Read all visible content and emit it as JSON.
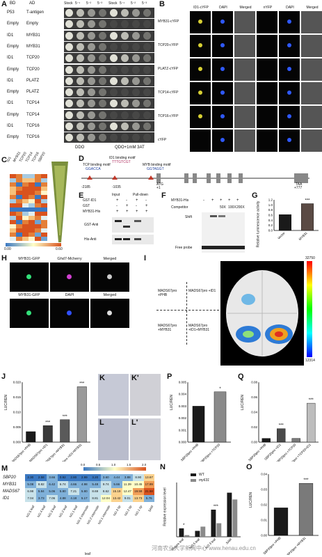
{
  "panels": {
    "A": {
      "letter": "A",
      "head_bd": "BD",
      "head_ad": "AD",
      "head_stock_dil": [
        "Stock",
        "5⁻¹",
        "5⁻²",
        "5⁻³"
      ],
      "head_stock_dil2": [
        "Stock",
        "5⁻¹",
        "5⁻²",
        "5⁻³"
      ],
      "rows": [
        [
          "P53",
          "T-antigen"
        ],
        [
          "Empty",
          "Empty"
        ],
        [
          "ID1",
          "MYB31"
        ],
        [
          "Empty",
          "MYB31"
        ],
        [
          "ID1",
          "TCP20"
        ],
        [
          "Empty",
          "TCP20"
        ],
        [
          "ID1",
          "PLATZ"
        ],
        [
          "Empty",
          "PLATZ"
        ],
        [
          "ID1",
          "TCP14"
        ],
        [
          "Empty",
          "TCP14"
        ],
        [
          "ID1",
          "TCP16"
        ],
        [
          "Empty",
          "TCP16"
        ]
      ],
      "media_left": "DDO",
      "media_right": "QDO+1mM 3AT"
    },
    "B": {
      "letter": "B",
      "cols": [
        "ID1-cYFP",
        "DAPI",
        "Merged",
        "nYFP",
        "DAPI",
        "Merged"
      ],
      "rows": [
        "MYB31-cYFP",
        "TCP20-cYFP",
        "PLATZ-cYFP",
        "TCP14-cYFP",
        "TCP16-cYFP",
        "cYFP"
      ]
    },
    "C": {
      "letter": "C",
      "cols": [
        "ID1",
        "MYB31",
        "TCP20",
        "TCP14",
        "TCP16",
        "SBP20"
      ],
      "scale_min": "0.00",
      "scale_max": "0.60"
    },
    "D": {
      "letter": "D",
      "tcp_motif": "TCP binding motif",
      "tcp_seq": "GGACCA",
      "id1_motif": "ID1 binding motif",
      "id1_seq": "TTTGTCGT",
      "myb_motif": "MYB binding motif",
      "myb_seq": "GGTAGGT",
      "atg": "ATG",
      "plus1": "+1",
      "taa": "TAA",
      "pos_taa": "+777",
      "pos_left": "-2185",
      "pos_mid": "-1035"
    },
    "E": {
      "letter": "E",
      "input": "Input",
      "pulldown": "Pull-down",
      "rows": [
        "GST-ID1",
        "GST",
        "MYB31-His"
      ],
      "blots": [
        "GST-Anti",
        "His-Anti"
      ],
      "signs": [
        [
          "+",
          "-",
          "+",
          "-"
        ],
        [
          "-",
          "+",
          "-",
          "+"
        ],
        [
          "+",
          "+",
          "+",
          "+"
        ]
      ]
    },
    "F": {
      "letter": "F",
      "myb": "MYB31-His",
      "competitor": "Competitor",
      "levels": [
        "50X",
        "100X",
        "200X"
      ],
      "shift": "Shift",
      "free_probe": "Free probe",
      "signs": [
        "-",
        "+",
        "+",
        "+",
        "+"
      ]
    },
    "G": {
      "letter": "G",
      "ylabel": "Relative luminescence activity",
      "categories": [
        "Vector",
        "MYB31"
      ],
      "values": [
        0.62,
        1.05
      ],
      "sig": "***",
      "yticks": [
        "0.0",
        "0.2",
        "0.4",
        "0.6",
        "0.8",
        "1.0",
        "1.2"
      ]
    },
    "H": {
      "letter": "H",
      "top": [
        "MYB31-GFP",
        "Ghd7-Mcherry",
        "Merged"
      ],
      "bottom": [
        "MYB31-GFP",
        "DAPI",
        "Merged"
      ]
    },
    "I": {
      "letter": "I",
      "quadrants": [
        "MADS67pro +PHB",
        "MADS67pro +ID1",
        "MADS67pro +MYB31",
        "MADS67pro +ID1+MYB31"
      ],
      "scale_max": "32750",
      "scale_min": "12314"
    },
    "J": {
      "letter": "J",
      "ylabel": "LUC/REN",
      "categories": [
        "MADS67pro +PHB",
        "MADS67pro +ID1",
        "MADS67pro +MYB31",
        "MADS67pro +ID1+MYB31"
      ],
      "values": [
        0.0035,
        0.0055,
        0.0075,
        0.0185
      ],
      "sig": [
        "",
        "***",
        "***",
        "***"
      ],
      "yticks": [
        "0.000",
        "0.005",
        "0.010",
        "0.015",
        "0.020"
      ]
    },
    "K": {
      "letter": "K",
      "letter2": "K'"
    },
    "L": {
      "letter": "L",
      "letter2": "L'"
    },
    "P": {
      "letter": "P",
      "ylabel": "LUC/REN",
      "categories": [
        "SBP20pro +PHB",
        "SBP20pro +TCP20"
      ],
      "values": [
        0.003,
        0.0042
      ],
      "sig": "*",
      "yticks": [
        "0.000",
        "0.001",
        "0.002",
        "0.003",
        "0.004",
        "0.005"
      ]
    },
    "Q": {
      "letter": "Q",
      "ylabel": "LUC/REN",
      "categories": [
        "SBP20pro +PHB",
        "SBP20pro +ID1",
        "SBP20pro +TCP20",
        "SBP20pro +TCP20+ID1"
      ],
      "values": [
        0.005,
        0.018,
        0.005,
        0.052
      ],
      "sig": [
        "",
        "***",
        "",
        "***"
      ],
      "yticks": [
        "0.00",
        "0.02",
        "0.04",
        "0.06",
        "0.08"
      ]
    },
    "M": {
      "letter": "M",
      "genes": [
        "SBP20",
        "MYB31",
        "MADS67",
        "ID1"
      ],
      "scale": [
        "0.0",
        "0.5",
        "1.0",
        "1.5",
        "2.0"
      ],
      "xlabel": "leaf",
      "cols": [
        "NO.5 leaf",
        "NO.4 leaf",
        "NO.3 leaf",
        "NO.2 leaf",
        "NO.1 leaf",
        "NO.3 internode",
        "NO.2 internode",
        "NO.1 internode",
        "NO.3 tip",
        "NO.2 tip",
        "NO.1 tip",
        "SAM"
      ],
      "values": [
        [
          2.3,
          2.58,
          3.66,
          0.92,
          2.8,
          2.99,
          3.2,
          3.6,
          4.44,
          3.88,
          8.9,
          13.67
        ],
        [
          5.08,
          8.82,
          6.42,
          6.74,
          4.66,
          4.98,
          5.48,
          9.74,
          5.66,
          11.39,
          10.45,
          17.99
        ],
        [
          6.98,
          5.84,
          5.06,
          5.8,
          7.21,
          5.8,
          8.69,
          8.62,
          15.19,
          12.47,
          19.59,
          21.58
        ],
        [
          7.04,
          3.73,
          7.06,
          4.88,
          4.18,
          5.17,
          8.81,
          12.04,
          13.42,
          9.01,
          13.73,
          5.76
        ]
      ]
    },
    "N": {
      "letter": "N",
      "ylabel": "Relative expression level",
      "legend": [
        "WT",
        "my631"
      ],
      "categories": [
        "Mature leaf",
        "NO.5 leaf",
        "NO.3 leaf",
        "SAM"
      ],
      "wt": [
        0.5,
        0.35,
        1.6,
        2.6
      ],
      "mut": [
        0.1,
        0.6,
        0.8,
        2.2
      ],
      "sig": [
        "*",
        "",
        "***",
        ""
      ]
    },
    "O": {
      "letter": "O",
      "ylabel": "LUC/REN",
      "categories": [
        "SBP20pro +PHB",
        "SBP20pro +MYB31"
      ],
      "values": [
        0.018,
        0.034
      ],
      "sig": "***",
      "yticks": [
        "0.00",
        "0.01",
        "0.02",
        "0.03",
        "0.04"
      ]
    }
  },
  "watermark": "河南农业大学新闻中心 www.henau.edu.cn",
  "colors": {
    "bar_dark": "#1a1a1a",
    "bar_mid": "#5a5a5a",
    "bar_light": "#bdbdbd",
    "heat_low": "#3a78c2",
    "heat_mid": "#ffffc8",
    "heat_high": "#d9531e",
    "yfp": "#d8d034",
    "dapi": "#2f59ff"
  }
}
